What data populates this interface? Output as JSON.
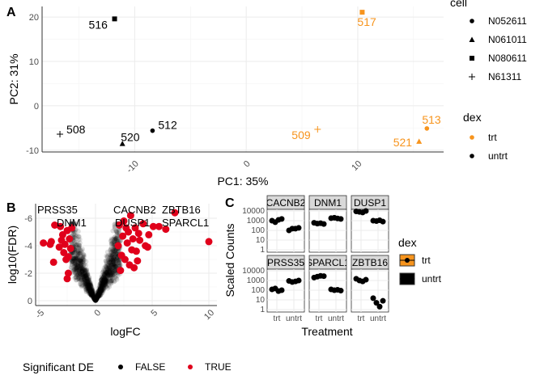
{
  "panels": {
    "a": "A",
    "b": "B",
    "c": "C"
  },
  "chart_data": [
    {
      "type": "scatter",
      "panel": "A",
      "xlabel": "PC1: 35%",
      "ylabel": "PC2: 31%",
      "xlim": [
        -18.3,
        17.7
      ],
      "ylim": [
        -10.4,
        22.4
      ],
      "xticks": [
        -10,
        0,
        10
      ],
      "yticks": [
        -10,
        0,
        10,
        20
      ],
      "grid": true,
      "colors": {
        "trt": "#f7941d",
        "untrt": "#000000"
      },
      "legend": {
        "position": "right",
        "cell_title": "cell",
        "cell": [
          {
            "label": "N052611",
            "shape": "circle"
          },
          {
            "label": "N061011",
            "shape": "triangle"
          },
          {
            "label": "N080611",
            "shape": "square"
          },
          {
            "label": "N61311",
            "shape": "plus"
          }
        ],
        "dex_title": "dex",
        "dex": [
          "trt",
          "untrt"
        ]
      },
      "points": [
        {
          "label": "516",
          "x": -11.8,
          "y": 19.6,
          "cell": "N080611",
          "dex": "untrt"
        },
        {
          "label": "517",
          "x": 10.4,
          "y": 21.1,
          "cell": "N080611",
          "dex": "trt"
        },
        {
          "label": "508",
          "x": -16.7,
          "y": -6.4,
          "cell": "N61311",
          "dex": "untrt"
        },
        {
          "label": "520",
          "x": -11.1,
          "y": -8.5,
          "cell": "N061011",
          "dex": "untrt"
        },
        {
          "label": "512",
          "x": -8.4,
          "y": -5.6,
          "cell": "N052611",
          "dex": "untrt"
        },
        {
          "label": "509",
          "x": 6.4,
          "y": -5.3,
          "cell": "N61311",
          "dex": "trt"
        },
        {
          "label": "521",
          "x": 15.5,
          "y": -8.0,
          "cell": "N061011",
          "dex": "trt"
        },
        {
          "label": "513",
          "x": 16.2,
          "y": -5.1,
          "cell": "N052611",
          "dex": "trt"
        }
      ]
    },
    {
      "type": "scatter",
      "panel": "B",
      "xlabel": "logFC",
      "ylabel": "log10(FDR)",
      "xlim": [
        -5.3,
        10.7
      ],
      "ylim": [
        0.4,
        -7
      ],
      "xticks": [
        -5,
        0,
        5,
        10
      ],
      "yticks": [
        0,
        -2,
        -4,
        -6
      ],
      "grid": true,
      "legend": {
        "position": "bottom",
        "title": "Significant DE",
        "entries": [
          {
            "label": "FALSE",
            "color": "#000000"
          },
          {
            "label": "TRUE",
            "color": "#e0001b"
          }
        ]
      },
      "significant_points": [
        [
          -4.6,
          -4.2
        ],
        [
          -4.0,
          -4.1
        ],
        [
          -3.9,
          -4.3
        ],
        [
          -3.7,
          -2.8
        ],
        [
          -3.6,
          -5.5
        ],
        [
          -3.1,
          -5.4
        ],
        [
          -2.9,
          -4.8
        ],
        [
          -2.8,
          -3.5
        ],
        [
          -2.7,
          -4.1
        ],
        [
          -2.6,
          -3.0
        ],
        [
          -2.5,
          -5.1
        ],
        [
          -2.5,
          -1.6
        ],
        [
          -2.4,
          -2.0
        ],
        [
          -2.3,
          -4.5
        ],
        [
          -2.2,
          -3.8
        ],
        [
          -2.1,
          -5.3
        ],
        [
          -3.2,
          -3.9
        ],
        [
          -3.0,
          -4.4
        ],
        [
          -2.4,
          -3.2
        ],
        [
          2.0,
          -4.0
        ],
        [
          2.1,
          -5.5
        ],
        [
          2.2,
          -2.2
        ],
        [
          2.3,
          -3.3
        ],
        [
          2.4,
          -4.7
        ],
        [
          2.5,
          -5.8
        ],
        [
          2.6,
          -3.0
        ],
        [
          2.8,
          -4.2
        ],
        [
          2.9,
          -5.0
        ],
        [
          3.0,
          -2.6
        ],
        [
          3.1,
          -6.2
        ],
        [
          3.2,
          -3.7
        ],
        [
          3.3,
          -4.5
        ],
        [
          3.4,
          -2.4
        ],
        [
          3.5,
          -5.3
        ],
        [
          3.6,
          -3.6
        ],
        [
          3.7,
          -2.9
        ],
        [
          3.8,
          -4.9
        ],
        [
          4.2,
          -5.6
        ],
        [
          4.4,
          -4.0
        ],
        [
          4.7,
          -4.8
        ],
        [
          4.6,
          -3.9
        ],
        [
          5.1,
          -5.4
        ],
        [
          5.6,
          -5.4
        ],
        [
          6.2,
          -5.2
        ],
        [
          7.0,
          -6.4
        ],
        [
          10.0,
          -4.3
        ],
        [
          2.7,
          -5.3
        ],
        [
          3.9,
          -4.4
        ]
      ],
      "labels": [
        {
          "text": "PRSS35",
          "x": -3.6,
          "y": -6.5
        },
        {
          "text": "DNM1",
          "x": -2.3,
          "y": -6.2
        },
        {
          "text": "CACNB2",
          "x": 2.6,
          "y": -6.5
        },
        {
          "text": "ZBTB16",
          "x": 5.5,
          "y": -6.5
        },
        {
          "text": "SPARCL1",
          "x": 3.7,
          "y": -6.2
        },
        {
          "text": "DUSP1",
          "x": 2.2,
          "y": -5.9
        }
      ]
    },
    {
      "type": "scatter",
      "panel": "C",
      "xlabel": "Treatment",
      "ylabel": "Scaled Counts",
      "yscale": "log",
      "yticks": [
        "1",
        "10",
        "100",
        "1000",
        "10000"
      ],
      "categories": [
        "trt",
        "untrt"
      ],
      "legend": {
        "title": "dex",
        "entries": [
          {
            "label": "trt",
            "color": "#f7941d"
          },
          {
            "label": "untrt",
            "color": "#000000"
          }
        ]
      },
      "facets": [
        {
          "name": "CACNB2",
          "trt": [
            1000,
            700,
            1200,
            1500
          ],
          "untrt": [
            100,
            150,
            150,
            180
          ]
        },
        {
          "name": "DNM1",
          "trt": [
            600,
            500,
            550,
            450
          ],
          "untrt": [
            1800,
            2000,
            1700,
            1500
          ]
        },
        {
          "name": "DUSP1",
          "trt": [
            9000,
            8000,
            7000,
            10000
          ],
          "untrt": [
            1000,
            900,
            1100,
            800
          ]
        },
        {
          "name": "PRSS35",
          "trt": [
            120,
            150,
            80,
            100
          ],
          "untrt": [
            900,
            700,
            800,
            1000
          ]
        },
        {
          "name": "SPARCL1",
          "trt": [
            2000,
            2500,
            3000,
            2800
          ],
          "untrt": [
            120,
            100,
            110,
            90
          ]
        },
        {
          "name": "ZBTB16",
          "trt": [
            1500,
            1000,
            800,
            1200
          ],
          "untrt": [
            15,
            5,
            2,
            8
          ]
        }
      ]
    }
  ]
}
